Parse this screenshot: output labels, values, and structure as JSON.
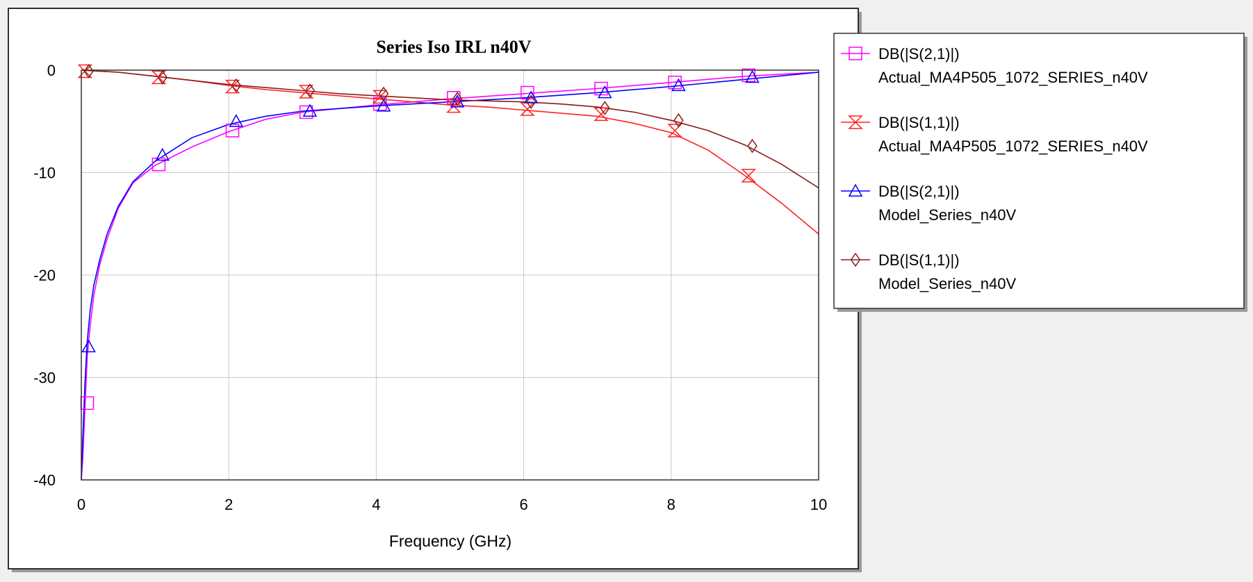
{
  "chart_data": {
    "type": "line",
    "title": "Series Iso IRL n40V",
    "xlabel": "Frequency (GHz)",
    "ylabel": "",
    "xlim": [
      0,
      10
    ],
    "ylim": [
      -40,
      0
    ],
    "x_ticks": [
      0,
      2,
      4,
      6,
      8,
      10
    ],
    "x_tick_labels": [
      "0",
      "2",
      "4",
      "6",
      "8",
      "10"
    ],
    "y_ticks": [
      0,
      -10,
      -20,
      -30,
      -40
    ],
    "y_tick_labels": [
      "0",
      "-10",
      "-20",
      "-30",
      "-40"
    ],
    "grid": true,
    "legend_position": "right",
    "series": [
      {
        "name": "DB(|S(2,1)|)",
        "source": "Actual_MA4P505_1072_SERIES_n40V",
        "color": "#ff00ff",
        "marker": "square",
        "x": [
          0.0,
          0.02,
          0.05,
          0.08,
          0.12,
          0.17,
          0.25,
          0.35,
          0.5,
          0.7,
          1.0,
          1.5,
          2.0,
          2.5,
          3.0,
          4.0,
          5.0,
          6.0,
          7.0,
          8.0,
          9.0,
          10.0
        ],
        "values": [
          -40.0,
          -38.0,
          -33.0,
          -28.0,
          -25.0,
          -22.0,
          -19.0,
          -16.5,
          -13.5,
          -11.0,
          -9.3,
          -7.5,
          -6.0,
          -4.8,
          -4.1,
          -3.4,
          -2.8,
          -2.3,
          -1.8,
          -1.2,
          -0.6,
          -0.2
        ],
        "markers": {
          "x": [
            0.08,
            1.05,
            2.05,
            3.05,
            4.05,
            5.05,
            6.05,
            7.05,
            8.05,
            9.05
          ],
          "y": [
            -32.5,
            -9.2,
            -5.9,
            -4.1,
            -3.3,
            -2.7,
            -2.2,
            -1.8,
            -1.2,
            -0.5
          ]
        }
      },
      {
        "name": "DB(|S(1,1)|)",
        "source": "Actual_MA4P505_1072_SERIES_n40V",
        "color": "#ff2020",
        "marker": "hourglass",
        "x": [
          0.0,
          0.5,
          1.0,
          1.5,
          2.0,
          2.5,
          3.0,
          3.5,
          4.0,
          4.5,
          5.0,
          5.5,
          6.0,
          6.5,
          7.0,
          7.5,
          8.0,
          8.5,
          9.0,
          9.5,
          10.0
        ],
        "values": [
          0.0,
          -0.2,
          -0.6,
          -1.0,
          -1.5,
          -1.9,
          -2.2,
          -2.5,
          -2.8,
          -3.1,
          -3.4,
          -3.6,
          -3.9,
          -4.2,
          -4.5,
          -5.2,
          -6.1,
          -7.8,
          -10.3,
          -13.0,
          -16.0
        ],
        "markers": {
          "x": [
            0.05,
            1.05,
            2.05,
            3.05,
            4.05,
            5.05,
            6.05,
            7.05,
            8.05,
            9.05
          ],
          "y": [
            -0.1,
            -0.7,
            -1.6,
            -2.1,
            -2.6,
            -3.5,
            -3.8,
            -4.3,
            -5.9,
            -10.3
          ]
        }
      },
      {
        "name": "DB(|S(2,1)|)",
        "source": "Model_Series_n40V",
        "color": "#0000ff",
        "marker": "triangle",
        "x": [
          0.0,
          0.02,
          0.05,
          0.08,
          0.12,
          0.17,
          0.25,
          0.35,
          0.5,
          0.7,
          1.0,
          1.5,
          2.0,
          2.5,
          3.0,
          4.0,
          5.0,
          6.0,
          7.0,
          8.0,
          9.0,
          10.0
        ],
        "values": [
          -40.0,
          -36.0,
          -30.5,
          -26.5,
          -23.5,
          -21.0,
          -18.5,
          -16.0,
          -13.3,
          -10.9,
          -8.9,
          -6.6,
          -5.3,
          -4.5,
          -4.0,
          -3.5,
          -3.1,
          -2.7,
          -2.2,
          -1.6,
          -0.9,
          -0.2
        ],
        "markers": {
          "x": [
            0.1,
            1.1,
            2.1,
            3.1,
            4.1,
            5.1,
            6.1,
            7.1,
            8.1,
            9.1
          ],
          "y": [
            -27.0,
            -8.3,
            -5.0,
            -4.0,
            -3.5,
            -3.1,
            -2.7,
            -2.2,
            -1.5,
            -0.7
          ]
        }
      },
      {
        "name": "DB(|S(1,1)|)",
        "source": "Model_Series_n40V",
        "color": "#8b1a1a",
        "marker": "diamond",
        "x": [
          0.0,
          0.5,
          1.0,
          1.5,
          2.0,
          2.5,
          3.0,
          3.5,
          4.0,
          4.5,
          5.0,
          5.5,
          6.0,
          6.5,
          7.0,
          7.5,
          8.0,
          8.5,
          9.0,
          9.5,
          10.0
        ],
        "values": [
          0.0,
          -0.2,
          -0.6,
          -1.0,
          -1.4,
          -1.7,
          -2.0,
          -2.3,
          -2.5,
          -2.7,
          -2.9,
          -3.0,
          -3.1,
          -3.3,
          -3.6,
          -4.1,
          -4.9,
          -5.9,
          -7.3,
          -9.2,
          -11.5
        ],
        "markers": {
          "x": [
            0.1,
            1.1,
            2.1,
            3.1,
            4.1,
            5.1,
            6.1,
            7.1,
            8.1,
            9.1
          ],
          "y": [
            -0.1,
            -0.7,
            -1.5,
            -2.0,
            -2.3,
            -2.8,
            -3.1,
            -3.7,
            -4.9,
            -7.4
          ]
        }
      }
    ]
  }
}
